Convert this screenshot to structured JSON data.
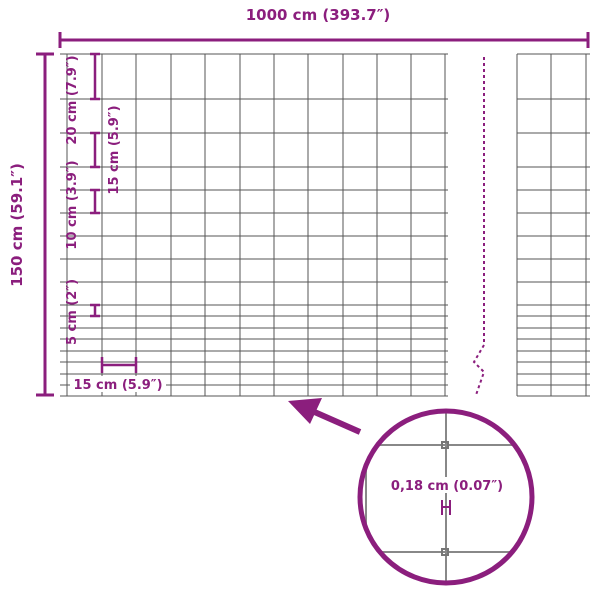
{
  "dimensions": {
    "width": "1000 cm (393.7″)",
    "height": "150 cm (59.1″)",
    "spacing_20": "20 cm (7.9″)",
    "spacing_15_vertical": "15 cm (5.9″)",
    "spacing_10": "10 cm (3.9″)",
    "spacing_5": "5 cm (2″)",
    "spacing_15_horizontal": "15 cm (5.9″)",
    "wire_thickness": "0,18 cm (0.07″)"
  },
  "colors": {
    "accent": "#8b1e7d",
    "wire": "#555555"
  }
}
